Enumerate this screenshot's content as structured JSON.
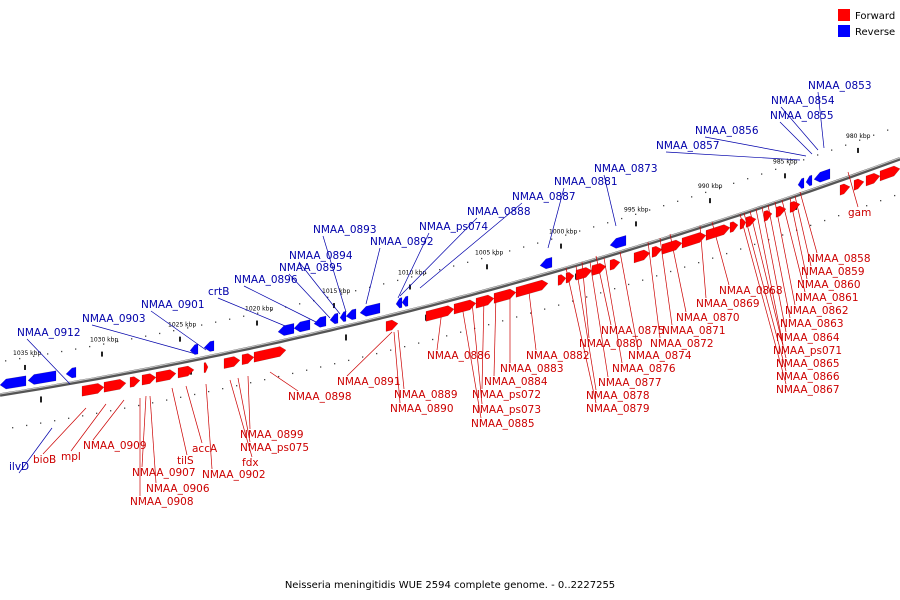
{
  "legend": {
    "forward_label": "Forward",
    "reverse_label": "Reverse",
    "forward_color": "#ff0000",
    "reverse_color": "#0000ff"
  },
  "footer_caption": "Neisseria meningitidis WUE 2594 complete genome. - 0..2227255",
  "colors": {
    "forward_label": "#cc0000",
    "reverse_label": "#0000aa",
    "backbone": "#808080"
  },
  "ticks": [
    "980 kbp",
    "985 kbp",
    "990 kbp",
    "995 kbp",
    "1000 kbp",
    "1005 kbp",
    "1010 kbp",
    "1015 kbp",
    "1020 kbp",
    "1025 kbp",
    "1030 kbp",
    "1035 kbp"
  ],
  "forward_labels": [
    "gam",
    "NMAA_0858",
    "NMAA_0859",
    "NMAA_0860",
    "NMAA_0861",
    "NMAA_0862",
    "NMAA_0863",
    "NMAA_0864",
    "NMAA_ps071",
    "NMAA_0865",
    "NMAA_0866",
    "NMAA_0867",
    "NMAA_0868",
    "NMAA_0869",
    "NMAA_0870",
    "NMAA_0871",
    "NMAA_0872",
    "NMAA_0874",
    "NMAA_0875",
    "NMAA_0880",
    "NMAA_0876",
    "NMAA_0877",
    "NMAA_0878",
    "NMAA_0879",
    "NMAA_0882",
    "NMAA_0883",
    "NMAA_0884",
    "NMAA_ps072",
    "NMAA_ps073",
    "NMAA_0885",
    "NMAA_0886",
    "NMAA_0891",
    "NMAA_0889",
    "NMAA_0890",
    "NMAA_0898",
    "NMAA_0899",
    "NMAA_ps075",
    "fdx",
    "NMAA_0902",
    "accA",
    "tilS",
    "NMAA_0909",
    "NMAA_0907",
    "NMAA_0906",
    "NMAA_0908",
    "mpl",
    "bioB"
  ],
  "reverse_labels": [
    "NMAA_0853",
    "NMAA_0854",
    "NMAA_0855",
    "NMAA_0856",
    "NMAA_0857",
    "NMAA_0873",
    "NMAA_0881",
    "NMAA_0887",
    "NMAA_0888",
    "NMAA_ps074",
    "NMAA_0892",
    "NMAA_0893",
    "NMAA_0894",
    "NMAA_0895",
    "NMAA_0896",
    "crtB",
    "NMAA_0901",
    "NMAA_0903",
    "NMAA_0912",
    "ilvD"
  ]
}
